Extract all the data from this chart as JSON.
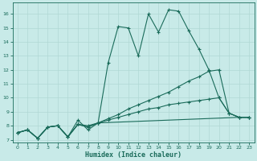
{
  "xlabel": "Humidex (Indice chaleur)",
  "background_color": "#c8eae8",
  "grid_color": "#b0d8d4",
  "line_color": "#1a6b5a",
  "xlim": [
    -0.5,
    23.5
  ],
  "ylim": [
    6.8,
    16.8
  ],
  "xticks": [
    0,
    1,
    2,
    3,
    4,
    5,
    6,
    7,
    8,
    9,
    10,
    11,
    12,
    13,
    14,
    15,
    16,
    17,
    18,
    19,
    20,
    21,
    22,
    23
  ],
  "yticks": [
    7,
    8,
    9,
    10,
    11,
    12,
    13,
    14,
    15,
    16
  ],
  "curve_main_x": [
    0,
    1,
    2,
    3,
    4,
    5,
    6,
    7,
    8,
    9,
    10,
    11,
    12,
    13,
    14,
    15,
    16,
    17,
    18,
    19,
    20,
    21,
    22,
    23
  ],
  "curve_main_y": [
    7.5,
    7.7,
    7.1,
    7.9,
    8.0,
    7.2,
    8.4,
    7.7,
    8.2,
    12.5,
    15.1,
    15.0,
    13.0,
    16.0,
    14.7,
    16.3,
    16.2,
    14.8,
    13.5,
    12.0,
    10.0,
    8.9,
    8.6,
    8.6
  ],
  "curve_a_x": [
    0,
    1,
    2,
    3,
    4,
    5,
    6,
    7,
    8,
    9,
    10,
    11,
    12,
    13,
    14,
    15,
    16,
    17,
    18,
    19,
    20,
    21,
    22,
    23
  ],
  "curve_a_y": [
    7.5,
    7.7,
    7.1,
    7.9,
    8.0,
    7.2,
    8.1,
    8.0,
    8.2,
    8.5,
    8.8,
    9.2,
    9.5,
    9.8,
    10.1,
    10.4,
    10.8,
    11.2,
    11.5,
    11.9,
    12.0,
    8.9,
    8.6,
    8.6
  ],
  "curve_b_x": [
    0,
    1,
    2,
    3,
    4,
    5,
    6,
    7,
    8,
    9,
    10,
    11,
    12,
    13,
    14,
    15,
    16,
    17,
    18,
    19,
    20,
    21,
    22,
    23
  ],
  "curve_b_y": [
    7.5,
    7.7,
    7.1,
    7.9,
    8.0,
    7.2,
    8.1,
    7.9,
    8.2,
    8.4,
    8.6,
    8.8,
    9.0,
    9.2,
    9.3,
    9.5,
    9.6,
    9.7,
    9.8,
    9.9,
    10.0,
    8.9,
    8.6,
    8.6
  ],
  "curve_c_x": [
    0,
    1,
    2,
    3,
    4,
    5,
    6,
    7,
    8,
    22,
    23
  ],
  "curve_c_y": [
    7.5,
    7.7,
    7.1,
    7.9,
    8.0,
    7.2,
    8.1,
    7.9,
    8.2,
    8.6,
    8.6
  ]
}
